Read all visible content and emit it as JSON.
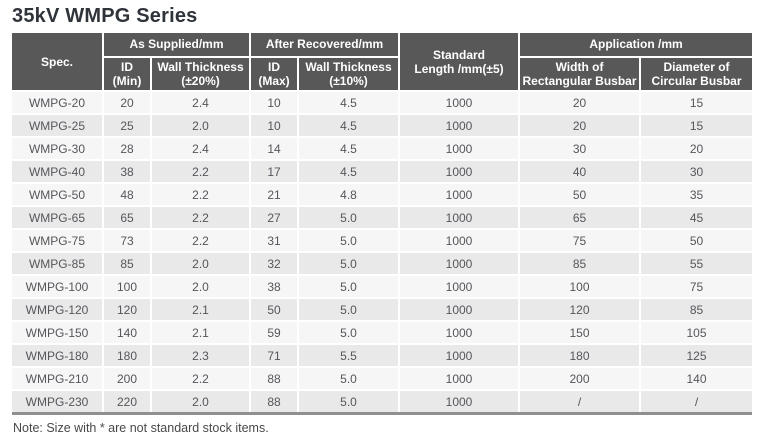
{
  "title": "35kV WMPG Series",
  "note": "Note: Size with * are not standard stock items.",
  "colors": {
    "header_bg": "#595859",
    "header_text": "#ffffff",
    "row_odd_bg": "#f6f6f6",
    "row_even_bg": "#e9e9e9",
    "bottom_rule": "#8f8f8f",
    "body_text": "#55565b"
  },
  "table": {
    "headers": {
      "spec": "Spec.",
      "as_supplied_group": "As Supplied/mm",
      "after_recovered_group": "After Recovered/mm",
      "standard_length": "Standard\nLength /mm(±5)",
      "application_group": "Application /mm",
      "id_min": "ID\n(Min)",
      "wall_thickness_20": "Wall Thickness\n(±20%)",
      "id_max": "ID\n(Max)",
      "wall_thickness_10": "Wall Thickness\n(±10%)",
      "width_rectangular_busbar": "Width of\nRectangular Busbar",
      "diameter_circular_busbar": "Diameter of\nCircular Busbar"
    },
    "rows": [
      [
        "WMPG-20",
        "20",
        "2.4",
        "10",
        "4.5",
        "1000",
        "20",
        "15"
      ],
      [
        "WMPG-25",
        "25",
        "2.0",
        "10",
        "4.5",
        "1000",
        "20",
        "15"
      ],
      [
        "WMPG-30",
        "28",
        "2.4",
        "14",
        "4.5",
        "1000",
        "30",
        "20"
      ],
      [
        "WMPG-40",
        "38",
        "2.2",
        "17",
        "4.5",
        "1000",
        "40",
        "30"
      ],
      [
        "WMPG-50",
        "48",
        "2.2",
        "21",
        "4.8",
        "1000",
        "50",
        "35"
      ],
      [
        "WMPG-65",
        "65",
        "2.2",
        "27",
        "5.0",
        "1000",
        "65",
        "45"
      ],
      [
        "WMPG-75",
        "73",
        "2.2",
        "31",
        "5.0",
        "1000",
        "75",
        "50"
      ],
      [
        "WMPG-85",
        "85",
        "2.0",
        "32",
        "5.0",
        "1000",
        "85",
        "55"
      ],
      [
        "WMPG-100",
        "100",
        "2.0",
        "38",
        "5.0",
        "1000",
        "100",
        "75"
      ],
      [
        "WMPG-120",
        "120",
        "2.1",
        "50",
        "5.0",
        "1000",
        "120",
        "85"
      ],
      [
        "WMPG-150",
        "140",
        "2.1",
        "59",
        "5.0",
        "1000",
        "150",
        "105"
      ],
      [
        "WMPG-180",
        "180",
        "2.3",
        "71",
        "5.5",
        "1000",
        "180",
        "125"
      ],
      [
        "WMPG-210",
        "200",
        "2.2",
        "88",
        "5.0",
        "1000",
        "200",
        "140"
      ],
      [
        "WMPG-230",
        "220",
        "2.0",
        "88",
        "5.0",
        "1000",
        "/",
        "/"
      ]
    ]
  }
}
